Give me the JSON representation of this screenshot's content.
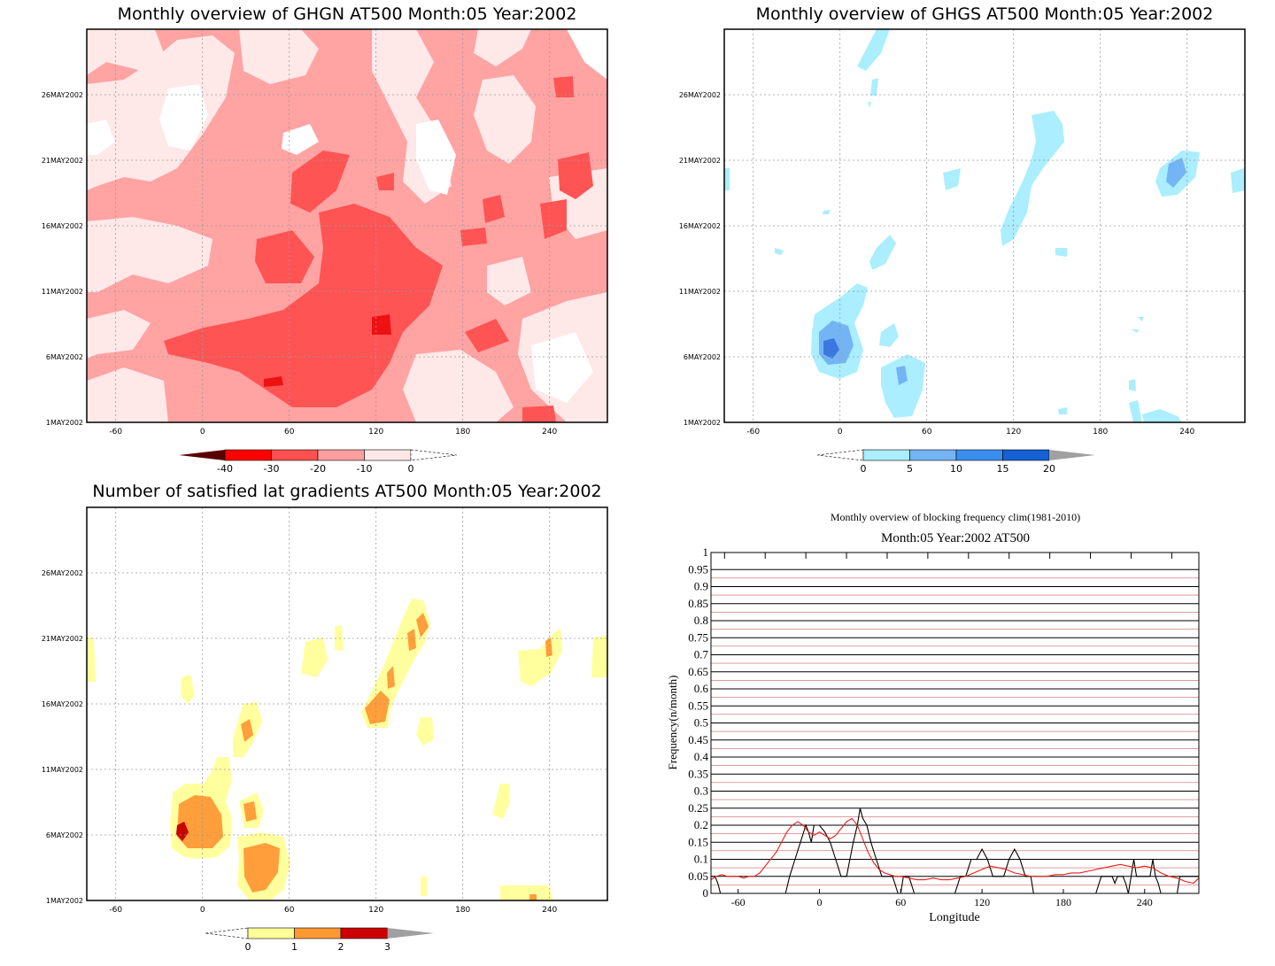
{
  "chart_data": [
    {
      "type": "heatmap",
      "title": "Monthly overview of GHGN AT500 Month:05 Year:2002",
      "x_ticks": [
        "-60",
        "0",
        "60",
        "120",
        "180",
        "240"
      ],
      "x_values": [
        -60,
        0,
        60,
        120,
        180,
        240
      ],
      "xlim": [
        -80,
        280
      ],
      "y_ticks": [
        "1MAY2002",
        "6MAY2002",
        "11MAY2002",
        "16MAY2002",
        "21MAY2002",
        "26MAY2002"
      ],
      "y_values": [
        1,
        6,
        11,
        16,
        21,
        26
      ],
      "ylim": [
        1,
        31
      ],
      "colorbar": {
        "labels": [
          "-40",
          "-30",
          "-20",
          "-10",
          "0"
        ],
        "values": [
          -40,
          -30,
          -20,
          -10,
          0
        ],
        "colors": [
          "#ff0000",
          "#ff5050",
          "#ff9e9e",
          "#ffe8e8"
        ],
        "below_color": "#7a0000",
        "above_color": "#ffffff"
      },
      "colors": {
        "level_1": "#ffe8e8",
        "level_2": "#ffa3a3",
        "level_3": "#ff5454",
        "level_4": "#ee1111"
      }
    },
    {
      "type": "heatmap",
      "title": "Monthly overview of GHGS AT500 Month:05 Year:2002",
      "x_ticks": [
        "-60",
        "0",
        "60",
        "120",
        "180",
        "240"
      ],
      "x_values": [
        -60,
        0,
        60,
        120,
        180,
        240
      ],
      "xlim": [
        -80,
        280
      ],
      "y_ticks": [
        "1MAY2002",
        "6MAY2002",
        "11MAY2002",
        "16MAY2002",
        "21MAY2002",
        "26MAY2002"
      ],
      "y_values": [
        1,
        6,
        11,
        16,
        21,
        26
      ],
      "ylim": [
        1,
        31
      ],
      "colorbar": {
        "labels": [
          "0",
          "5",
          "10",
          "15",
          "20"
        ],
        "values": [
          0,
          5,
          10,
          15,
          20
        ],
        "colors": [
          "#aaeeff",
          "#74b4f4",
          "#3a8ef0",
          "#1460d4"
        ],
        "below_color": "#ffffff",
        "above_color": "#a0a0a0"
      },
      "colors": {
        "level_1": "#aaeeff",
        "level_2": "#74b4f4",
        "level_3": "#3a78e0"
      }
    },
    {
      "type": "heatmap",
      "title": "Number of satisfied lat gradients AT500 Month:05 Year:2002",
      "x_ticks": [
        "-60",
        "0",
        "60",
        "120",
        "180",
        "240"
      ],
      "x_values": [
        -60,
        0,
        60,
        120,
        180,
        240
      ],
      "xlim": [
        -80,
        280
      ],
      "y_ticks": [
        "1MAY2002",
        "6MAY2002",
        "11MAY2002",
        "16MAY2002",
        "21MAY2002",
        "26MAY2002"
      ],
      "y_values": [
        1,
        6,
        11,
        16,
        21,
        26
      ],
      "ylim": [
        1,
        31
      ],
      "colorbar": {
        "labels": [
          "0",
          "1",
          "2",
          "3"
        ],
        "values": [
          0,
          1,
          2,
          3
        ],
        "colors": [
          "#ffff99",
          "#ff9933",
          "#cc0000"
        ],
        "below_color": "#ffffff",
        "above_color": "#a0a0a0"
      },
      "colors": {
        "level_1": "#ffff9e",
        "level_2": "#ff9e3a",
        "level_3": "#c80000"
      }
    },
    {
      "type": "line",
      "title": "Monthly overview of blocking frequency clim(1981-2010)",
      "subtitle": "Month:05 Year:2002  AT500",
      "xlabel": "Longitude",
      "ylabel": "Frequency(n/month)",
      "xlim": [
        -80,
        280
      ],
      "ylim": [
        0,
        1
      ],
      "x_ticks": [
        "-60",
        "0",
        "60",
        "120",
        "180",
        "240"
      ],
      "x_values": [
        -60,
        0,
        60,
        120,
        180,
        240
      ],
      "y_ticks": [
        "0",
        "0.05",
        "0.1",
        "0.15",
        "0.2",
        "0.25",
        "0.3",
        "0.35",
        "0.4",
        "0.45",
        "0.5",
        "0.55",
        "0.6",
        "0.65",
        "0.7",
        "0.75",
        "0.8",
        "0.85",
        "0.9",
        "0.95",
        "1"
      ],
      "grid": true,
      "series": [
        {
          "color": "#000000",
          "x": [
            -80,
            -77,
            -75,
            -73,
            -70,
            -25,
            -22,
            -18,
            -14,
            -10,
            -8,
            -6,
            -4,
            -2,
            0,
            4,
            8,
            12,
            16,
            20,
            25,
            28,
            30,
            32,
            35,
            38,
            42,
            46,
            50,
            54,
            58,
            60,
            62,
            64,
            66,
            70,
            74,
            78,
            82,
            86,
            90,
            94,
            100,
            104,
            108,
            112,
            116,
            120,
            124,
            128,
            132,
            136,
            140,
            144,
            148,
            152,
            156,
            158,
            160,
            200,
            204,
            208,
            212,
            216,
            218,
            220,
            222,
            224,
            226,
            228,
            230,
            232,
            234,
            236,
            238,
            240,
            242,
            244,
            246,
            248,
            250,
            252,
            260,
            264,
            266,
            270,
            276,
            280
          ],
          "y": [
            0.05,
            0.05,
            0.03,
            0,
            0,
            0,
            0.05,
            0.1,
            0.15,
            0.2,
            0.18,
            0.15,
            0.2,
            0.2,
            0.2,
            0.18,
            0.15,
            0.1,
            0.05,
            0.05,
            0.15,
            0.2,
            0.25,
            0.22,
            0.2,
            0.15,
            0.1,
            0.05,
            0.05,
            0.05,
            0,
            0,
            0.05,
            0.05,
            0.05,
            0,
            0,
            0,
            0,
            0,
            0,
            0,
            0,
            0.05,
            0.05,
            0.1,
            0.1,
            0.13,
            0.1,
            0.05,
            0.05,
            0.05,
            0.1,
            0.13,
            0.1,
            0.05,
            0.05,
            0,
            0,
            0,
            0,
            0.05,
            0.05,
            0.05,
            0.03,
            0.05,
            0.05,
            0.05,
            0.03,
            0,
            0.05,
            0.1,
            0.05,
            0.05,
            0.05,
            0.05,
            0.05,
            0.05,
            0.1,
            0.05,
            0.03,
            0,
            0,
            0,
            0.05,
            0.05,
            0.05,
            0.05
          ]
        },
        {
          "color": "#e8201a",
          "x": [
            -80,
            -76,
            -72,
            -68,
            -64,
            -60,
            -56,
            -52,
            -48,
            -44,
            -40,
            -36,
            -32,
            -28,
            -24,
            -20,
            -16,
            -12,
            -8,
            -4,
            0,
            4,
            8,
            12,
            16,
            20,
            24,
            28,
            32,
            36,
            40,
            44,
            48,
            52,
            56,
            60,
            66,
            72,
            78,
            84,
            90,
            96,
            102,
            108,
            114,
            120,
            126,
            132,
            138,
            144,
            150,
            156,
            162,
            168,
            174,
            180,
            186,
            192,
            198,
            204,
            210,
            216,
            222,
            228,
            234,
            240,
            246,
            252,
            258,
            264,
            270,
            276,
            280
          ],
          "y": [
            0.04,
            0.05,
            0.055,
            0.05,
            0.05,
            0.05,
            0.045,
            0.05,
            0.05,
            0.06,
            0.08,
            0.1,
            0.12,
            0.15,
            0.18,
            0.2,
            0.21,
            0.2,
            0.18,
            0.17,
            0.18,
            0.17,
            0.16,
            0.17,
            0.19,
            0.21,
            0.22,
            0.2,
            0.16,
            0.12,
            0.09,
            0.07,
            0.06,
            0.055,
            0.05,
            0.05,
            0.045,
            0.04,
            0.04,
            0.045,
            0.04,
            0.04,
            0.045,
            0.05,
            0.06,
            0.07,
            0.08,
            0.075,
            0.07,
            0.06,
            0.055,
            0.05,
            0.05,
            0.05,
            0.055,
            0.055,
            0.06,
            0.06,
            0.065,
            0.07,
            0.075,
            0.08,
            0.085,
            0.08,
            0.075,
            0.08,
            0.075,
            0.06,
            0.05,
            0.045,
            0.035,
            0.03,
            0.045
          ]
        }
      ]
    }
  ]
}
